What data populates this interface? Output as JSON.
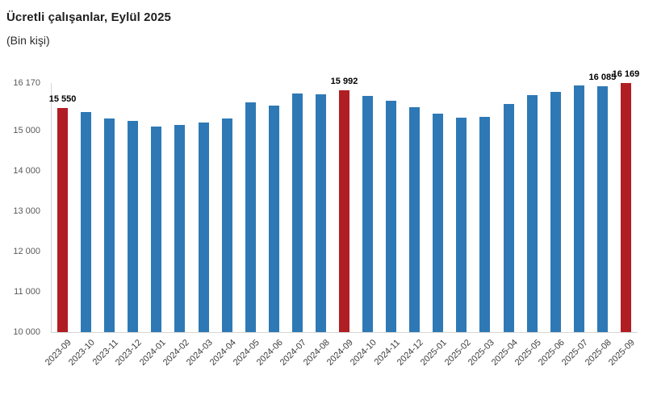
{
  "chart": {
    "title": "Ücretli çalışanlar, Eylül 2025",
    "subtitle": "(Bin kişi)"
  },
  "chart_data": {
    "type": "bar",
    "title": "Ücretli çalışanlar, Eylül 2025",
    "subtitle": "(Bin kişi)",
    "xlabel": "",
    "ylabel": "",
    "categories": [
      "2023-09",
      "2023-10",
      "2023-11",
      "2023-12",
      "2024-01",
      "2024-02",
      "2024-03",
      "2024-04",
      "2024-05",
      "2024-06",
      "2024-07",
      "2024-08",
      "2024-09",
      "2024-10",
      "2024-11",
      "2024-12",
      "2025-01",
      "2025-02",
      "2025-03",
      "2025-04",
      "2025-05",
      "2025-06",
      "2025-07",
      "2025-08",
      "2025-09"
    ],
    "values": [
      15550,
      15445,
      15300,
      15235,
      15095,
      15135,
      15200,
      15285,
      15685,
      15605,
      15905,
      15895,
      15992,
      15855,
      15740,
      15575,
      15405,
      15305,
      15325,
      15655,
      15875,
      15950,
      16104,
      16085,
      16169
    ],
    "highlight_indices": [
      0,
      12,
      24
    ],
    "point_labels": [
      {
        "index": 0,
        "text": "15 550"
      },
      {
        "index": 12,
        "text": "15 992"
      },
      {
        "index": 23,
        "text": "16 085"
      },
      {
        "index": 24,
        "text": "16 169"
      }
    ],
    "ylim": [
      10000,
      16170
    ],
    "yticks": [
      {
        "value": 16170,
        "label": "16 170"
      },
      {
        "value": 15000,
        "label": "15 000"
      },
      {
        "value": 14000,
        "label": "14 000"
      },
      {
        "value": 13000,
        "label": "13 000"
      },
      {
        "value": 12000,
        "label": "12 000"
      },
      {
        "value": 11000,
        "label": "11 000"
      },
      {
        "value": 10000,
        "label": "10 000"
      }
    ],
    "grid": false,
    "legend": false,
    "colors": {
      "bar": "#2E79B5",
      "highlight": "#B01E24",
      "axis_line": "#D6D6D6",
      "ytick_text": "#595959",
      "xtick_text": "#3C3C3C",
      "value_label": "#000000",
      "background": "#FFFFFF"
    }
  }
}
